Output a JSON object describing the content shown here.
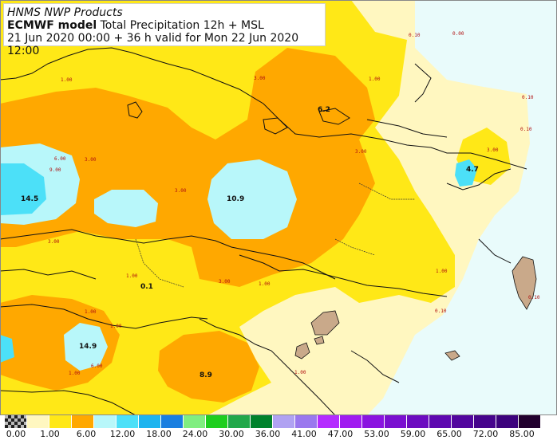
{
  "title": {
    "line1": "HNMS NWP Products",
    "model": "ECMWF model",
    "product": "Total Precipitation 12h + MSL",
    "line3": "21 Jun 2020 00:00 + 36 h valid for Mon 22 Jun 2020 12:00"
  },
  "colors": {
    "sea": "#e9fbfb",
    "land_low": "#fff7c0",
    "band_1": "#ffe817",
    "band_3": "#ffa800",
    "band_6": "#b8f7fa",
    "band_12": "#4ce0f8",
    "island_fill": "#c9a98a",
    "coast": "#111111"
  },
  "maxima": [
    "14.5",
    "10.9",
    "6.2",
    "14.9",
    "8.9",
    "0.1",
    "4.7"
  ],
  "contour_labels": [
    "0.10",
    "0.00",
    "1.00",
    "3.00",
    "1.00",
    "6.00",
    "3.00",
    "9.00",
    "3.00",
    "3.00",
    "0.10",
    "3.00",
    "3.00",
    "3.00",
    "1.00",
    "1.00",
    "1.00",
    "0.10",
    "1.00",
    "1.00",
    "1.00",
    "6.00",
    "1.00",
    "0.10",
    "0.10"
  ],
  "legend": {
    "ticks": [
      "0.00",
      "1.00",
      "6.00",
      "12.00",
      "18.00",
      "24.00",
      "30.00",
      "36.00",
      "41.00",
      "47.00",
      "53.00",
      "59.00",
      "65.00",
      "72.00",
      "85.00"
    ],
    "swatch_colors": [
      "#333333",
      "#fff7c0",
      "#ffe817",
      "#ffa800",
      "#b8f7fa",
      "#4ce0f8",
      "#1eb4ef",
      "#1a7fe0",
      "#80ee80",
      "#1ece1e",
      "#22a84a",
      "#00822c",
      "#b0a2f2",
      "#9a78ee",
      "#b42cff",
      "#a01cf0",
      "#8a14e0",
      "#7a10d0",
      "#6c0cc0",
      "#5e08b0",
      "#52069e",
      "#46048c",
      "#3c027c",
      "#22002e"
    ]
  }
}
